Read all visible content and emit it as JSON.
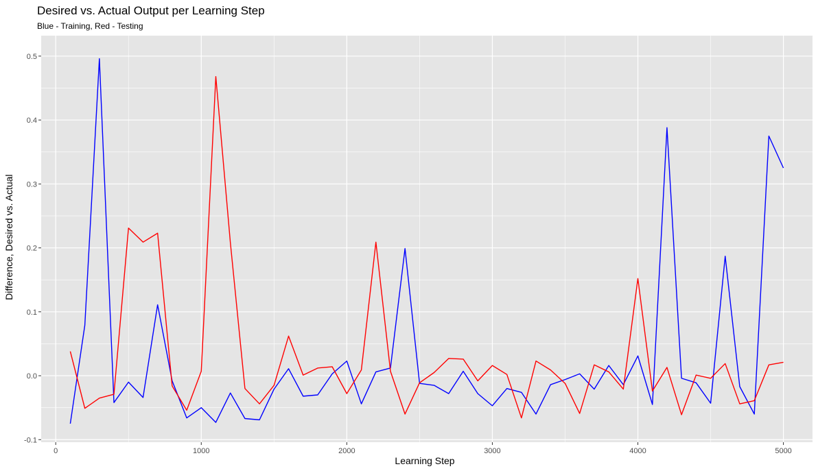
{
  "chart_data": {
    "type": "line",
    "title": "Desired vs. Actual Output per Learning Step",
    "subtitle": "Blue - Training, Red - Testing",
    "xlabel": "Learning Step",
    "ylabel": "Difference, Desired vs. Actual",
    "xlim": [
      -100,
      5200
    ],
    "ylim": [
      -0.104,
      0.532
    ],
    "x_ticks": [
      0,
      1000,
      2000,
      3000,
      4000,
      5000
    ],
    "x_tick_labels": [
      "0",
      "1000",
      "2000",
      "3000",
      "4000",
      "5000"
    ],
    "y_ticks": [
      -0.1,
      0.0,
      0.1,
      0.2,
      0.3,
      0.4,
      0.5
    ],
    "y_tick_labels": [
      "-0.1",
      "0.0",
      "0.1",
      "0.2",
      "0.3",
      "0.4",
      "0.5"
    ],
    "grid": true,
    "background": "#e5e5e5",
    "gridline_color": "#ffffff",
    "x": [
      100,
      200,
      300,
      400,
      500,
      600,
      700,
      800,
      900,
      1000,
      1100,
      1200,
      1300,
      1400,
      1500,
      1600,
      1700,
      1800,
      1900,
      2000,
      2100,
      2200,
      2300,
      2400,
      2500,
      2600,
      2700,
      2800,
      2900,
      3000,
      3100,
      3200,
      3300,
      3400,
      3500,
      3600,
      3700,
      3800,
      3900,
      4000,
      4100,
      4200,
      4300,
      4400,
      4500,
      4600,
      4700,
      4800,
      4900,
      5000
    ],
    "series": [
      {
        "color": "#0000ff",
        "values": [
          -0.075,
          0.079,
          0.496,
          -0.042,
          -0.01,
          -0.034,
          0.111,
          -0.008,
          -0.066,
          -0.05,
          -0.073,
          -0.027,
          -0.067,
          -0.069,
          -0.021,
          0.011,
          -0.032,
          -0.03,
          0.003,
          0.023,
          -0.044,
          0.006,
          0.012,
          0.199,
          -0.012,
          -0.015,
          -0.028,
          0.007,
          -0.028,
          -0.047,
          -0.02,
          -0.026,
          -0.06,
          -0.014,
          -0.006,
          0.003,
          -0.021,
          0.016,
          -0.014,
          0.031,
          -0.045,
          0.388,
          -0.004,
          -0.011,
          -0.043,
          0.187,
          -0.017,
          -0.06,
          0.375,
          0.325
        ]
      },
      {
        "color": "#ff0000",
        "values": [
          0.038,
          -0.051,
          -0.035,
          -0.029,
          0.231,
          0.209,
          0.223,
          -0.016,
          -0.054,
          0.007,
          0.468,
          0.208,
          -0.02,
          -0.044,
          -0.015,
          0.062,
          0.001,
          0.012,
          0.014,
          -0.028,
          0.009,
          0.209,
          0.007,
          -0.06,
          -0.011,
          0.005,
          0.027,
          0.026,
          -0.008,
          0.016,
          0.002,
          -0.066,
          0.023,
          0.009,
          -0.012,
          -0.059,
          0.017,
          0.006,
          -0.021,
          0.152,
          -0.024,
          0.013,
          -0.061,
          0.001,
          -0.004,
          0.019,
          -0.044,
          -0.039,
          0.017,
          0.021
        ]
      }
    ]
  }
}
